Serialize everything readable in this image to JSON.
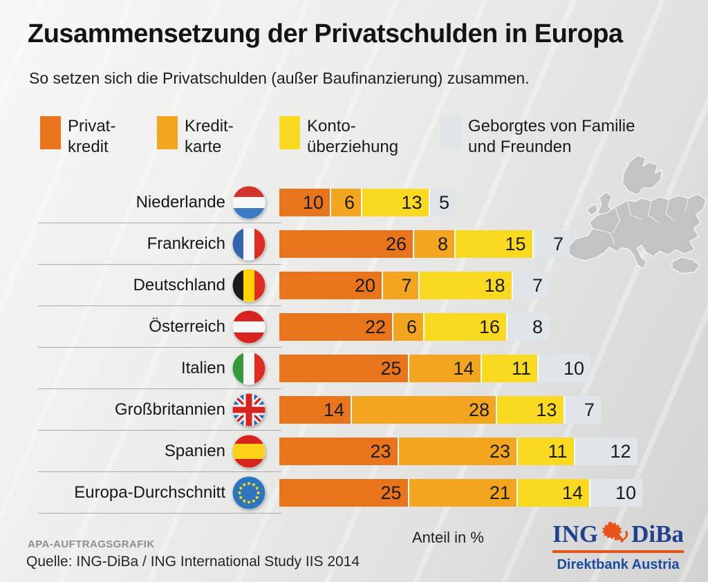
{
  "title": "Zusammensetzung der Privatschulden in Europa",
  "subtitle": "So setzen sich die Privatschulden (außer Baufinanzierung) zusammen.",
  "legend": [
    {
      "name": "privatkredit",
      "label_lines": [
        "Privat-",
        "kredit"
      ],
      "color": "#E8751C"
    },
    {
      "name": "kreditkarte",
      "label_lines": [
        "Kredit-",
        "karte"
      ],
      "color": "#F3A51F"
    },
    {
      "name": "kontoueberziehung",
      "label_lines": [
        "Konto-",
        "überziehung"
      ],
      "color": "#FADA20"
    },
    {
      "name": "geborgtes",
      "label_lines": [
        "Geborgtes von Familie",
        "und Freunden"
      ],
      "color": "#E0E5E9"
    }
  ],
  "chart_data": {
    "type": "bar",
    "orientation": "horizontal",
    "stacked": true,
    "value_unit": "%",
    "xlabel": "Anteil in %",
    "categories": [
      "Niederlande",
      "Frankreich",
      "Deutschland",
      "Österreich",
      "Italien",
      "Großbritannien",
      "Spanien",
      "Europa-Durchschnitt"
    ],
    "flags": [
      "netherlands",
      "france",
      "germany",
      "austria",
      "italy",
      "great-britain",
      "spain",
      "europe"
    ],
    "series": [
      {
        "name": "Privatkredit",
        "color": "#E8751C",
        "values": [
          10,
          26,
          20,
          22,
          25,
          14,
          23,
          25
        ]
      },
      {
        "name": "Kreditkarte",
        "color": "#F3A51F",
        "values": [
          6,
          8,
          7,
          6,
          14,
          28,
          23,
          21
        ]
      },
      {
        "name": "Kontoüberziehung",
        "color": "#FADA20",
        "values": [
          13,
          15,
          18,
          16,
          11,
          13,
          11,
          14
        ]
      },
      {
        "name": "Geborgtes von Familie und Freunden",
        "color": "#E0E5E9",
        "values": [
          5,
          7,
          7,
          8,
          10,
          7,
          12,
          10
        ]
      }
    ]
  },
  "footer": {
    "credit": "APA-AUFTRAGSGRAFIK",
    "source": "Quelle: ING-DiBa / ING International Study IIS 2014",
    "axis_label": "Anteil in %",
    "logo": {
      "brand_left": "ING",
      "brand_right": "DiBa",
      "tagline": "Direktbank Austria"
    }
  },
  "colors": {
    "accent_orange": "#E8751C",
    "amber": "#F3A51F",
    "yellow": "#FADA20",
    "light_gray_segment": "#E0E5E9",
    "logo_blue": "#21418F",
    "logo_orange": "#E8531B",
    "map_gray": "#C3C3C3"
  }
}
